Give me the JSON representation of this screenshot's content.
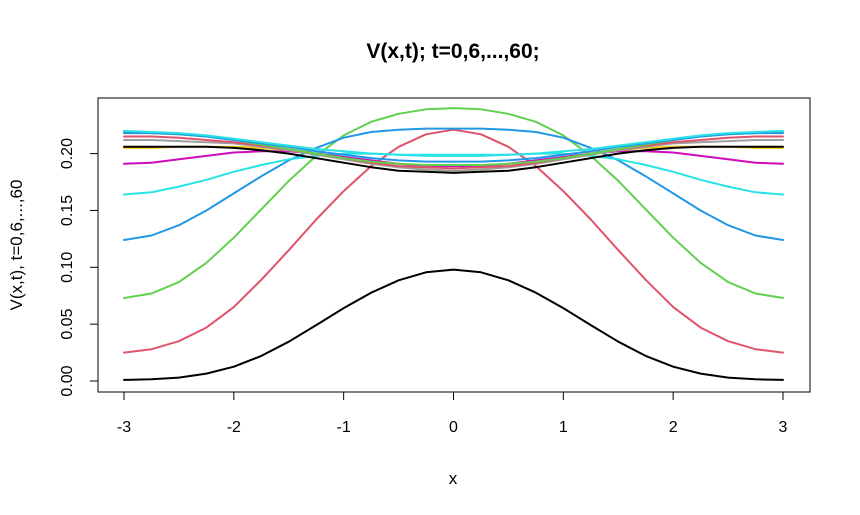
{
  "chart_data": {
    "type": "line",
    "title": "V(x,t); t=0,6,...,60;",
    "xlabel": "x",
    "ylabel": "V(x,t), t=0,6,...,60",
    "xlim": [
      -3,
      3
    ],
    "ylim": [
      0,
      0.22
    ],
    "x_ticks": [
      "-3",
      "-2",
      "-1",
      "0",
      "1",
      "2",
      "3"
    ],
    "y_ticks": [
      "0.00",
      "0.05",
      "0.10",
      "0.15",
      "0.20"
    ],
    "grid": false,
    "legend": "none",
    "x": [
      -3,
      -2.75,
      -2.5,
      -2.25,
      -2,
      -1.75,
      -1.5,
      -1.25,
      -1,
      -0.75,
      -0.5,
      -0.25,
      0,
      0.25,
      0.5,
      0.75,
      1,
      1.25,
      1.5,
      1.75,
      2,
      2.25,
      2.5,
      2.75,
      3
    ],
    "series": [
      {
        "color": "#000000",
        "values": [
          0.001,
          0.0015,
          0.003,
          0.0065,
          0.0126,
          0.0221,
          0.0346,
          0.0492,
          0.0641,
          0.0777,
          0.0886,
          0.0956,
          0.098,
          0.0956,
          0.0886,
          0.0777,
          0.0641,
          0.0492,
          0.0346,
          0.0221,
          0.0126,
          0.0065,
          0.003,
          0.0015,
          0.001
        ]
      },
      {
        "color": "#DF536B",
        "values": [
          0.025,
          0.028,
          0.035,
          0.047,
          0.065,
          0.089,
          0.115,
          0.142,
          0.167,
          0.189,
          0.206,
          0.217,
          0.221,
          0.217,
          0.206,
          0.189,
          0.167,
          0.142,
          0.115,
          0.089,
          0.065,
          0.047,
          0.035,
          0.028,
          0.025
        ]
      },
      {
        "color": "#61D04F",
        "values": [
          0.073,
          0.077,
          0.087,
          0.104,
          0.126,
          0.151,
          0.176,
          0.198,
          0.216,
          0.228,
          0.235,
          0.239,
          0.24,
          0.239,
          0.235,
          0.228,
          0.216,
          0.198,
          0.176,
          0.151,
          0.126,
          0.104,
          0.087,
          0.077,
          0.073
        ]
      },
      {
        "color": "#2297E6",
        "values": [
          0.124,
          0.128,
          0.137,
          0.15,
          0.165,
          0.18,
          0.194,
          0.205,
          0.214,
          0.219,
          0.221,
          0.222,
          0.222,
          0.222,
          0.221,
          0.219,
          0.214,
          0.205,
          0.194,
          0.18,
          0.165,
          0.15,
          0.137,
          0.128,
          0.124
        ]
      },
      {
        "color": "#28E2E5",
        "values": [
          0.164,
          0.166,
          0.171,
          0.177,
          0.184,
          0.19,
          0.195,
          0.198,
          0.2,
          0.2,
          0.199,
          0.198,
          0.198,
          0.198,
          0.199,
          0.2,
          0.2,
          0.198,
          0.195,
          0.19,
          0.184,
          0.177,
          0.171,
          0.166,
          0.164
        ]
      },
      {
        "color": "#CD0BBC",
        "values": [
          0.191,
          0.192,
          0.195,
          0.198,
          0.201,
          0.202,
          0.202,
          0.2,
          0.197,
          0.194,
          0.191,
          0.189,
          0.189,
          0.189,
          0.191,
          0.194,
          0.197,
          0.2,
          0.202,
          0.202,
          0.201,
          0.198,
          0.195,
          0.192,
          0.191
        ]
      },
      {
        "color": "#F5C710",
        "values": [
          0.205,
          0.205,
          0.206,
          0.206,
          0.206,
          0.205,
          0.203,
          0.199,
          0.195,
          0.191,
          0.188,
          0.186,
          0.185,
          0.186,
          0.188,
          0.191,
          0.195,
          0.199,
          0.203,
          0.205,
          0.206,
          0.206,
          0.206,
          0.205,
          0.205
        ]
      },
      {
        "color": "#9E9E9E",
        "values": [
          0.212,
          0.212,
          0.211,
          0.21,
          0.209,
          0.206,
          0.203,
          0.199,
          0.195,
          0.191,
          0.188,
          0.186,
          0.185,
          0.186,
          0.188,
          0.191,
          0.195,
          0.199,
          0.203,
          0.206,
          0.209,
          0.21,
          0.211,
          0.212,
          0.212
        ]
      },
      {
        "color": "#000000",
        "values": [
          0.206,
          0.206,
          0.206,
          0.206,
          0.205,
          0.203,
          0.2,
          0.196,
          0.192,
          0.188,
          0.185,
          0.184,
          0.183,
          0.184,
          0.185,
          0.188,
          0.192,
          0.196,
          0.2,
          0.203,
          0.205,
          0.206,
          0.206,
          0.206,
          0.206
        ]
      },
      {
        "color": "#DF536B",
        "values": [
          0.215,
          0.215,
          0.214,
          0.212,
          0.21,
          0.207,
          0.204,
          0.2,
          0.196,
          0.192,
          0.189,
          0.188,
          0.187,
          0.188,
          0.189,
          0.192,
          0.196,
          0.2,
          0.204,
          0.207,
          0.21,
          0.212,
          0.214,
          0.215,
          0.215
        ]
      },
      {
        "color": "#61D04F",
        "values": [
          0.219,
          0.218,
          0.217,
          0.215,
          0.212,
          0.208,
          0.204,
          0.2,
          0.196,
          0.193,
          0.191,
          0.19,
          0.19,
          0.19,
          0.191,
          0.193,
          0.196,
          0.2,
          0.204,
          0.208,
          0.212,
          0.215,
          0.217,
          0.218,
          0.219
        ]
      },
      {
        "color": "#2297E6",
        "values": [
          0.218,
          0.218,
          0.217,
          0.215,
          0.212,
          0.209,
          0.206,
          0.202,
          0.199,
          0.196,
          0.194,
          0.193,
          0.193,
          0.193,
          0.194,
          0.196,
          0.199,
          0.202,
          0.206,
          0.209,
          0.212,
          0.215,
          0.217,
          0.218,
          0.218
        ]
      },
      {
        "color": "#28E2E5",
        "values": [
          0.22,
          0.219,
          0.218,
          0.216,
          0.213,
          0.21,
          0.207,
          0.204,
          0.202,
          0.2,
          0.199,
          0.199,
          0.199,
          0.199,
          0.199,
          0.2,
          0.202,
          0.204,
          0.207,
          0.21,
          0.213,
          0.216,
          0.218,
          0.219,
          0.22
        ]
      }
    ]
  }
}
